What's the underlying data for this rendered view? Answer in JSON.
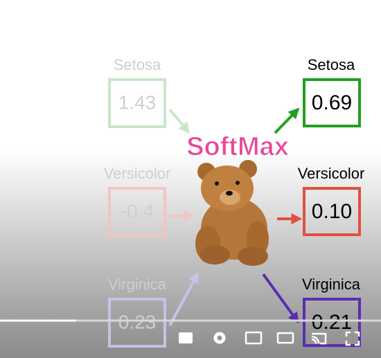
{
  "diagram": {
    "title": "SoftMax",
    "inputs": [
      {
        "label": "Setosa",
        "value": "1.43"
      },
      {
        "label": "Versicolor",
        "value": "-0.4"
      },
      {
        "label": "Virginica",
        "value": "0.23"
      }
    ],
    "outputs": [
      {
        "label": "Setosa",
        "value": "0.69"
      },
      {
        "label": "Versicolor",
        "value": "0.10"
      },
      {
        "label": "Virginica",
        "value": "0.21"
      }
    ]
  }
}
